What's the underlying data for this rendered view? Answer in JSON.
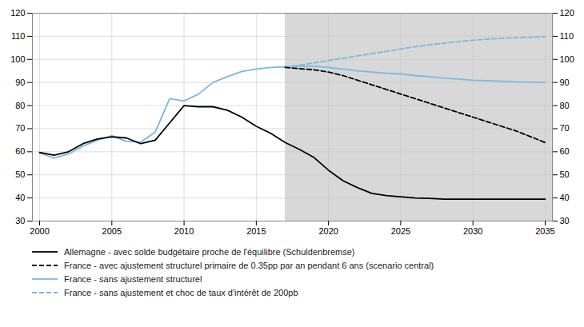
{
  "chart_data": {
    "type": "line",
    "x": [
      2000,
      2001,
      2002,
      2003,
      2004,
      2005,
      2006,
      2007,
      2008,
      2009,
      2010,
      2011,
      2012,
      2013,
      2014,
      2015,
      2016,
      2017,
      2018,
      2019,
      2020,
      2021,
      2022,
      2023,
      2024,
      2025,
      2026,
      2027,
      2028,
      2029,
      2030,
      2031,
      2032,
      2033,
      2034,
      2035
    ],
    "series": [
      {
        "name": "Allemagne - avec solde budgétaire proche de l'équilibre (Schuldenbremse)",
        "color": "#000000",
        "line_style": "solid",
        "values": [
          59.7,
          58.5,
          60.0,
          63.5,
          65.5,
          66.5,
          66.0,
          63.5,
          65.0,
          72.5,
          80.0,
          79.5,
          79.5,
          78.0,
          75.0,
          71.0,
          68.0,
          64.0,
          61.0,
          57.5,
          52.0,
          47.5,
          44.5,
          42.0,
          41.0,
          40.5,
          40.0,
          39.8,
          39.5,
          39.5,
          39.5,
          39.5,
          39.5,
          39.5,
          39.5,
          39.5
        ]
      },
      {
        "name": "France - avec ajustement structurel primaire de 0.35pp par an pendant 6 ans (scenario central)",
        "color": "#000000",
        "line_style": "dashed",
        "values": [
          null,
          null,
          null,
          null,
          null,
          null,
          null,
          null,
          null,
          null,
          null,
          null,
          null,
          null,
          null,
          null,
          null,
          96.5,
          96.0,
          95.5,
          94.5,
          93.0,
          91.0,
          89.0,
          87.0,
          85.0,
          83.0,
          81.0,
          79.0,
          77.0,
          75.0,
          73.0,
          71.0,
          69.0,
          66.5,
          64.0
        ]
      },
      {
        "name": "France - sans ajustement structurel",
        "color": "#7ab8e0",
        "line_style": "solid",
        "values": [
          59.5,
          57.3,
          59.0,
          62.5,
          65.0,
          67.0,
          64.5,
          64.2,
          68.5,
          83.0,
          82.0,
          85.0,
          90.0,
          92.5,
          94.8,
          95.8,
          96.5,
          96.8,
          97.0,
          97.0,
          96.5,
          95.8,
          95.0,
          94.5,
          94.0,
          93.7,
          93.0,
          92.5,
          91.8,
          91.5,
          91.0,
          90.8,
          90.5,
          90.3,
          90.1,
          90.0
        ]
      },
      {
        "name": "France - sans ajustement et choc de taux d'intérêt de 200pb",
        "color": "#7ab8e0",
        "line_style": "dashed",
        "values": [
          null,
          null,
          null,
          null,
          null,
          null,
          null,
          null,
          null,
          null,
          null,
          null,
          null,
          null,
          null,
          null,
          null,
          96.5,
          97.5,
          98.5,
          99.5,
          100.5,
          101.5,
          102.5,
          103.5,
          104.5,
          105.5,
          106.3,
          107.0,
          107.7,
          108.3,
          108.8,
          109.1,
          109.4,
          109.6,
          109.8
        ]
      }
    ],
    "shaded_region": {
      "x": [
        2017,
        2035.5
      ],
      "color": "#d8d8d8"
    },
    "xlim": [
      1999.5,
      2035.5
    ],
    "xticks": [
      2000,
      2005,
      2010,
      2015,
      2020,
      2025,
      2030,
      2035
    ],
    "ylim": [
      30,
      120
    ],
    "yticks": [
      30,
      40,
      50,
      60,
      70,
      80,
      90,
      100,
      110,
      120
    ],
    "y2lim": [
      30,
      120
    ],
    "y2ticks": [
      30,
      40,
      50,
      60,
      70,
      80,
      90,
      100,
      110,
      120
    ],
    "grid": true,
    "legend": "bottom"
  }
}
